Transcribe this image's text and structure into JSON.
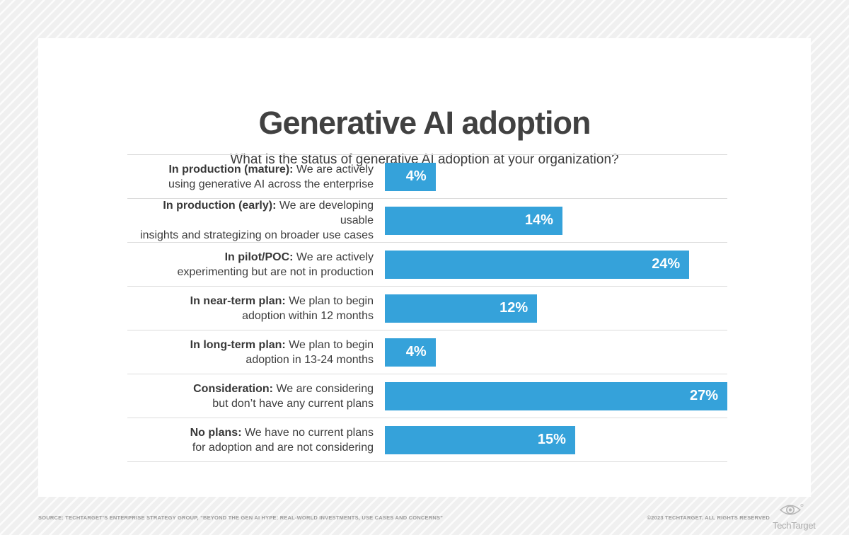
{
  "chart_data": {
    "type": "bar",
    "orientation": "horizontal",
    "title": "Generative AI adoption",
    "subtitle": "What is the status of generative AI adoption at your organization?",
    "xlim": [
      0,
      27
    ],
    "bar_color": "#35a2da",
    "grid": "row-dividers",
    "legend": "none",
    "categories": [
      "In production (mature)",
      "In production (early)",
      "In pilot/POC",
      "In near-term plan",
      "In long-term plan",
      "Consideration",
      "No plans"
    ],
    "values": [
      4,
      14,
      24,
      12,
      4,
      27,
      15
    ],
    "rows": [
      {
        "label_bold": "In production (mature):",
        "label_rest": " We are actively",
        "label_line2": "using generative AI across the enterprise",
        "value": 4,
        "value_label": "4%"
      },
      {
        "label_bold": "In production (early):",
        "label_rest": " We are developing usable",
        "label_line2": "insights and strategizing on broader use cases",
        "value": 14,
        "value_label": "14%"
      },
      {
        "label_bold": "In pilot/POC:",
        "label_rest": " We are actively",
        "label_line2": "experimenting but are not in production",
        "value": 24,
        "value_label": "24%"
      },
      {
        "label_bold": "In near-term plan:",
        "label_rest": " We plan to begin",
        "label_line2": "adoption within 12 months",
        "value": 12,
        "value_label": "12%"
      },
      {
        "label_bold": "In long-term plan:",
        "label_rest": " We plan to begin",
        "label_line2": "adoption in 13-24 months",
        "value": 4,
        "value_label": "4%"
      },
      {
        "label_bold": "Consideration:",
        "label_rest": " We are considering",
        "label_line2": "but don’t have any current plans",
        "value": 27,
        "value_label": "27%"
      },
      {
        "label_bold": "No plans:",
        "label_rest": " We have no current plans",
        "label_line2": "for adoption and are not considering",
        "value": 15,
        "value_label": "15%"
      }
    ]
  },
  "footer": {
    "source": "SOURCE: TECHTARGET’S ENTERPRISE STRATEGY GROUP, “BEYOND THE GEN AI HYPE: REAL-WORLD INVESTMENTS, USE CASES AND CONCERNS”",
    "copyright": "©2023 TECHTARGET. ALL RIGHTS RESERVED",
    "logo_text": "TechTarget"
  }
}
